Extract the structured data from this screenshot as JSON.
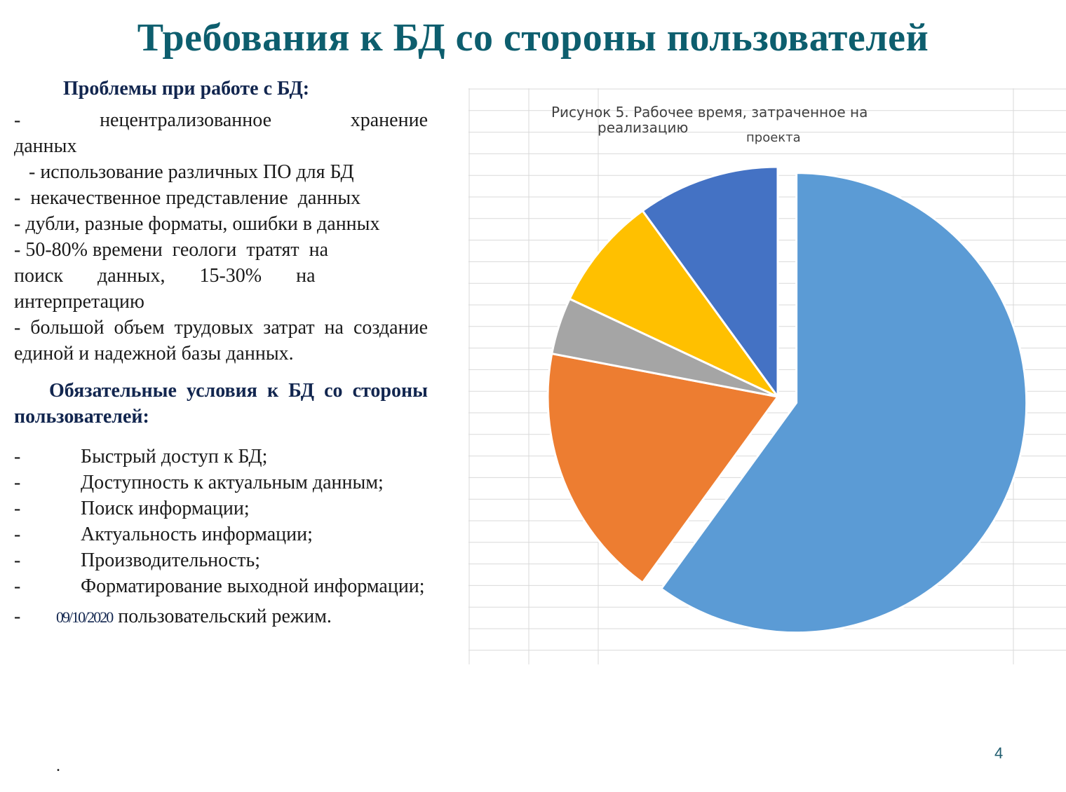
{
  "slide": {
    "title": "Требования к БД со стороны пользователей",
    "page_number": "4",
    "date_text": "09/10/2020",
    "trailing_dot": "."
  },
  "problems": {
    "heading": "Проблемы при работе с БД:",
    "line1": "-      нецентрализованное      хранение",
    "line1b": "данных",
    "line2": "   - использование различных ПО для БД",
    "line3": "-  некачественное представление  данных",
    "line4": "- дубли, разные форматы,   ошибки в данных",
    "line5": "- 50-80% времени  геологи  тратят  на",
    "line6": "поиск       данных,       15-30%       на",
    "line6b": "интерпретацию",
    "line7": "- большой объем трудовых затрат на создание единой и надежной базы данных."
  },
  "conditions": {
    "heading": "Обязательные условия к БД со стороны пользователей:",
    "dash": "-",
    "items": [
      "Быстрый доступ к БД;",
      "Доступность к актуальным данным;",
      "Поиск информации;",
      "Актуальность информации;",
      "Производительность;",
      "Форматирование выходной информации;"
    ],
    "last_item": "пользовательский режим."
  },
  "chart_data": {
    "type": "pie",
    "title_line1": "Рисунок 5. Рабочее время, затраченное на",
    "title_line2": "реализацию",
    "title_line3": "проекта",
    "values": [
      60,
      18,
      4,
      8,
      10
    ],
    "colors": [
      "#5b9bd5",
      "#ed7d31",
      "#a5a5a5",
      "#ffc000",
      "#4472c4"
    ],
    "exploded_index": 0,
    "legend": "none"
  }
}
